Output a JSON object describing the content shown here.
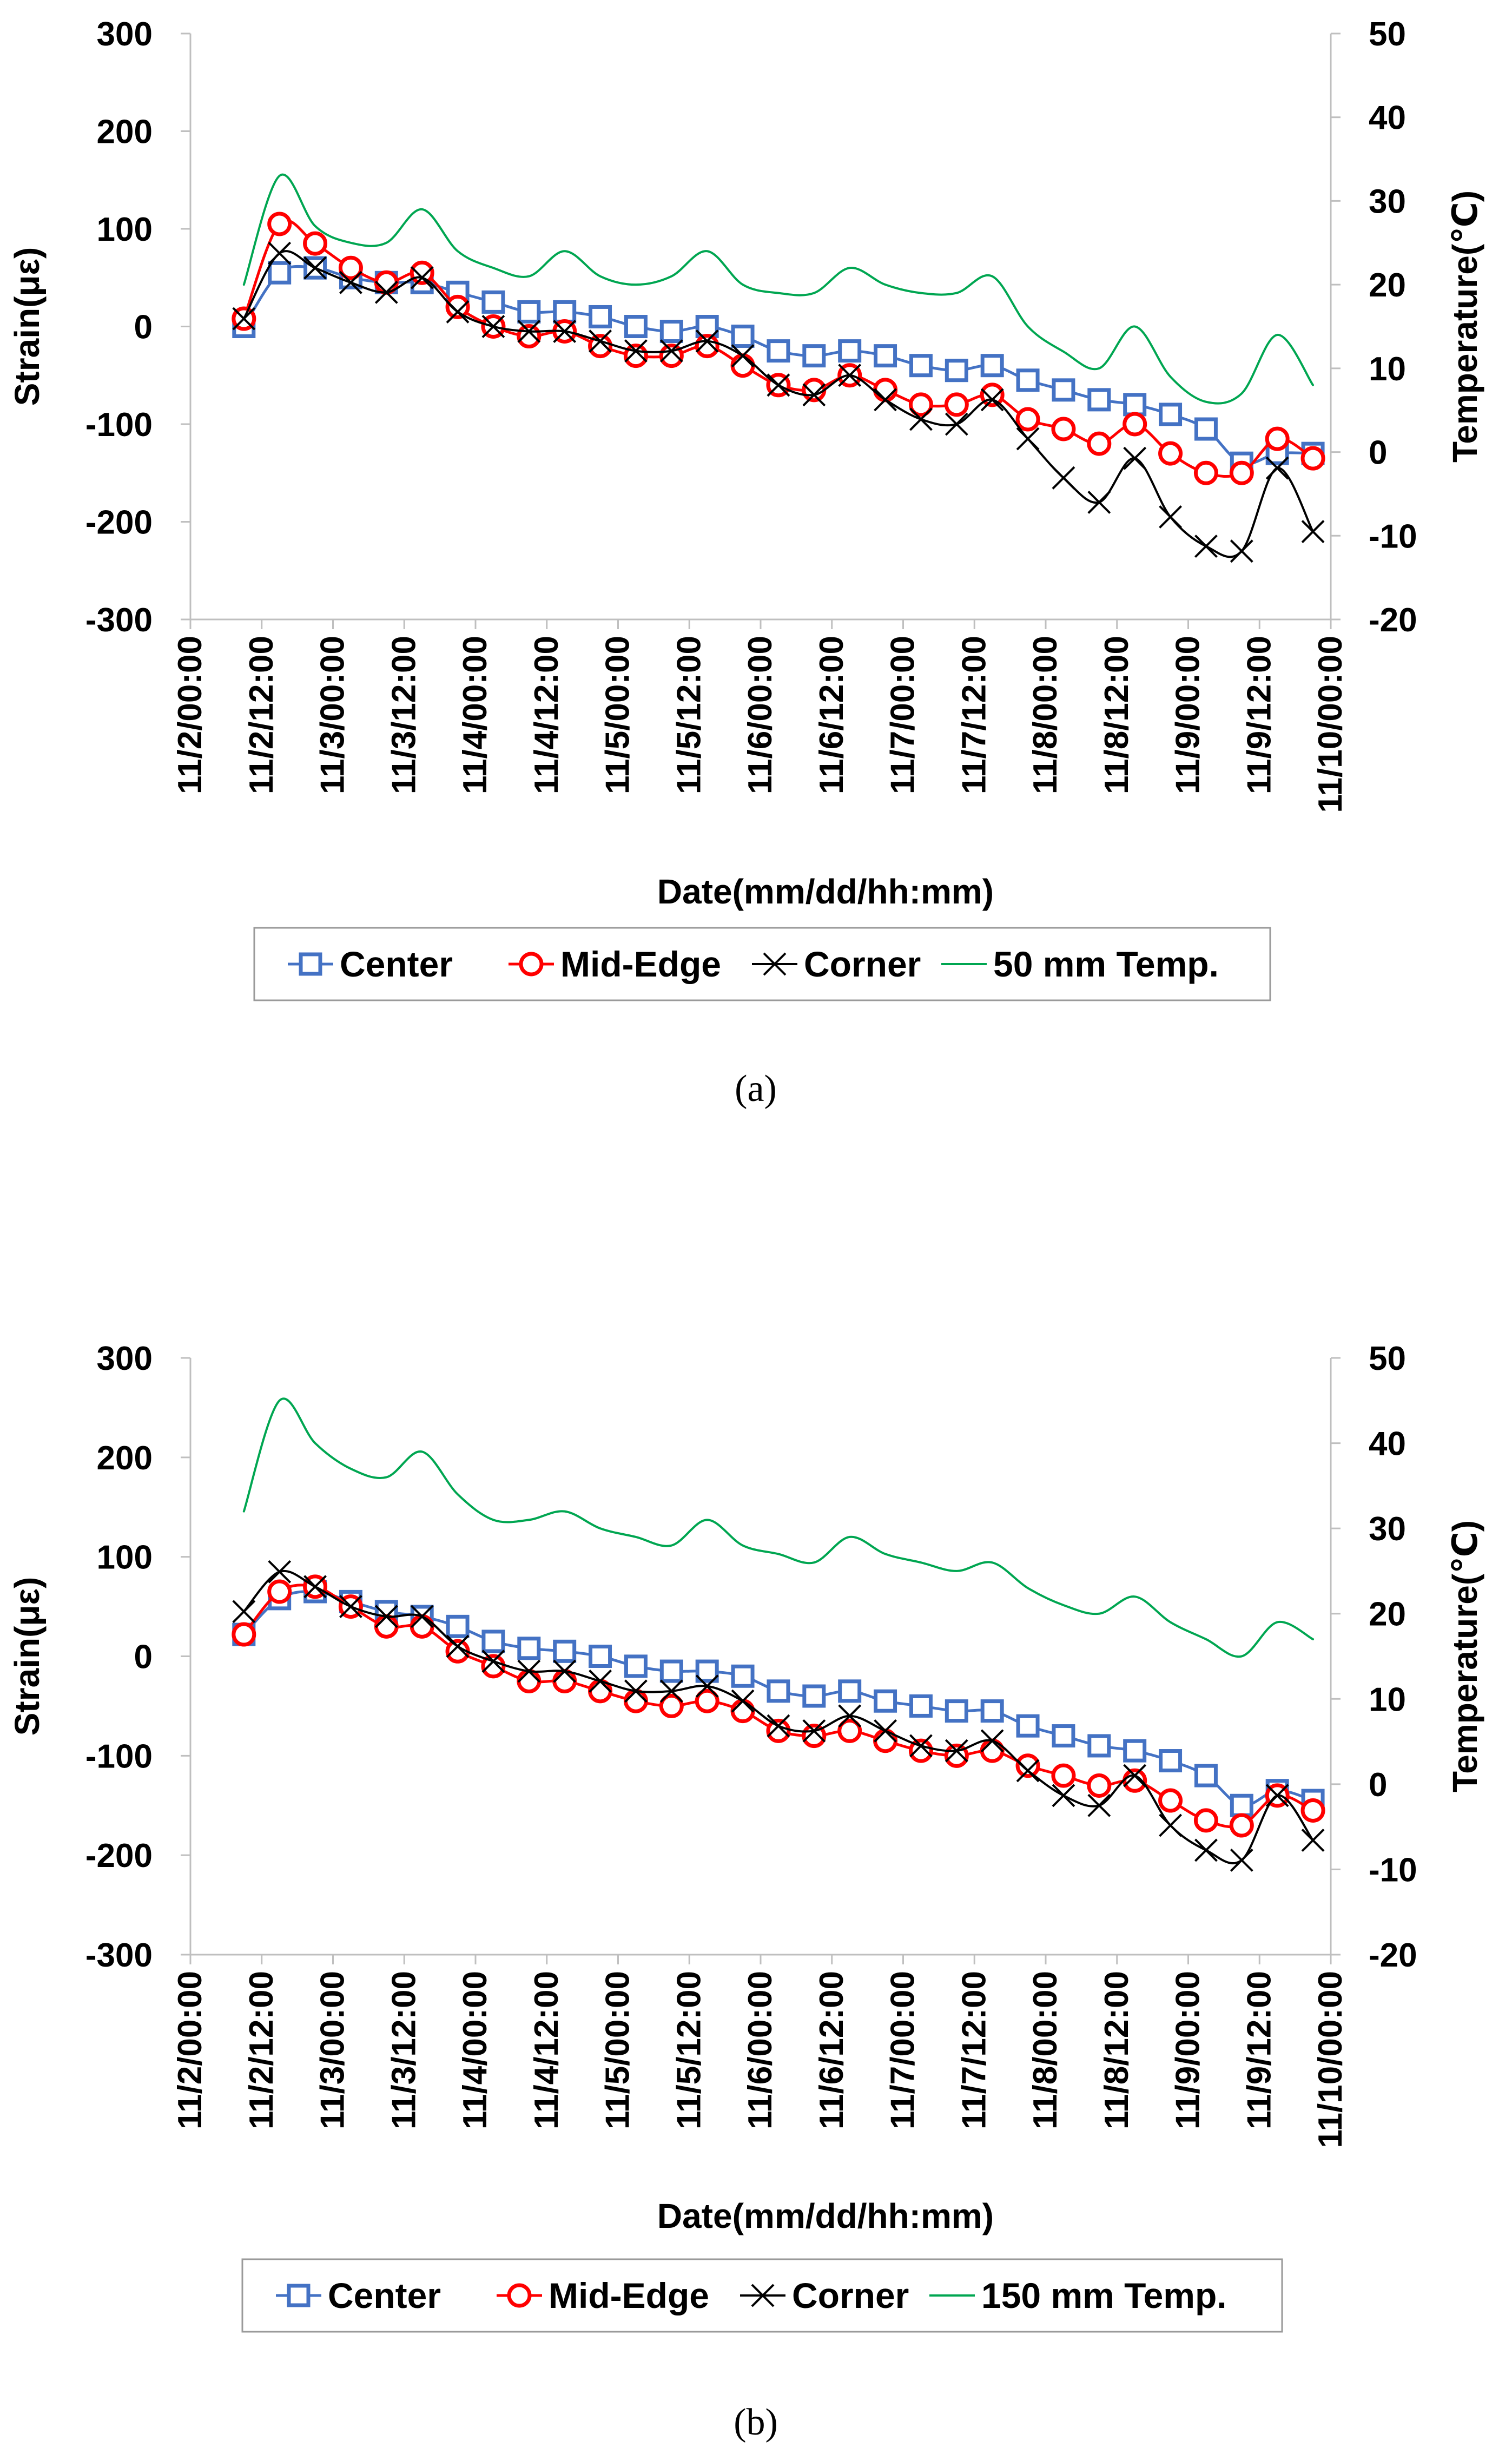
{
  "chart_data": [
    {
      "type": "line",
      "panel": "a",
      "caption": "(a)",
      "xlabel": "Date(mm/dd/hh:mm)",
      "ylabel": "Strain(με)",
      "y2label": "Temperature(℃)",
      "xlim": [
        0,
        192
      ],
      "ylim": [
        -300,
        300
      ],
      "y2lim": [
        -20,
        50
      ],
      "xticks": [
        0,
        12,
        24,
        36,
        48,
        60,
        72,
        84,
        96,
        108,
        120,
        132,
        144,
        156,
        168,
        180,
        192
      ],
      "xtick_labels": [
        "11/2/00:00",
        "11/2/12:00",
        "11/3/00:00",
        "11/3/12:00",
        "11/4/00:00",
        "11/4/12:00",
        "11/5/00:00",
        "11/5/12:00",
        "11/6/00:00",
        "11/6/12:00",
        "11/7/00:00",
        "11/7/12:00",
        "11/8/00:00",
        "11/8/12:00",
        "11/9/00:00",
        "11/9/12:00",
        "11/10/00:00"
      ],
      "yticks": [
        300,
        200,
        100,
        0,
        -100,
        -200,
        -300
      ],
      "y2ticks": [
        50,
        40,
        30,
        20,
        10,
        0,
        -10,
        -20
      ],
      "series": [
        {
          "name": "Center",
          "color": "#4472C4",
          "marker": "square",
          "x": [
            9,
            15,
            21,
            27,
            33,
            39,
            45,
            51,
            57,
            63,
            69,
            75,
            81,
            87,
            93,
            99,
            105,
            111,
            117,
            123,
            129,
            135,
            141,
            147,
            153,
            159,
            165,
            171,
            177,
            183,
            189
          ],
          "values": [
            0,
            55,
            60,
            50,
            45,
            45,
            35,
            25,
            15,
            15,
            10,
            0,
            -5,
            0,
            -10,
            -25,
            -30,
            -25,
            -30,
            -40,
            -45,
            -40,
            -55,
            -65,
            -75,
            -80,
            -90,
            -105,
            -140,
            -130,
            -130
          ]
        },
        {
          "name": "Mid-Edge",
          "color": "#FF0000",
          "marker": "circle",
          "x": [
            9,
            15,
            21,
            27,
            33,
            39,
            45,
            51,
            57,
            63,
            69,
            75,
            81,
            87,
            93,
            99,
            105,
            111,
            117,
            123,
            129,
            135,
            141,
            147,
            153,
            159,
            165,
            171,
            177,
            183,
            189
          ],
          "values": [
            8,
            105,
            85,
            60,
            45,
            55,
            20,
            0,
            -10,
            -5,
            -20,
            -30,
            -30,
            -20,
            -40,
            -60,
            -65,
            -50,
            -65,
            -80,
            -80,
            -70,
            -95,
            -105,
            -120,
            -100,
            -130,
            -150,
            -150,
            -115,
            -135
          ]
        },
        {
          "name": "Corner",
          "color": "#000000",
          "marker": "x",
          "x": [
            9,
            15,
            21,
            27,
            33,
            39,
            45,
            51,
            57,
            63,
            69,
            75,
            81,
            87,
            93,
            99,
            105,
            111,
            117,
            123,
            129,
            135,
            141,
            147,
            153,
            159,
            165,
            171,
            177,
            183,
            189
          ],
          "values": [
            8,
            75,
            60,
            45,
            35,
            50,
            15,
            0,
            -5,
            -5,
            -15,
            -25,
            -25,
            -15,
            -30,
            -60,
            -70,
            -50,
            -75,
            -95,
            -100,
            -75,
            -115,
            -155,
            -180,
            -135,
            -195,
            -225,
            -230,
            -145,
            -210
          ]
        },
        {
          "name": "50 mm Temp.",
          "color": "#00A651",
          "marker": "none",
          "axis": "y2",
          "x": [
            9,
            15,
            21,
            27,
            33,
            39,
            45,
            51,
            57,
            63,
            69,
            75,
            81,
            87,
            93,
            99,
            105,
            111,
            117,
            123,
            129,
            135,
            141,
            147,
            153,
            159,
            165,
            171,
            177,
            183,
            189
          ],
          "values": [
            20,
            33,
            27,
            25,
            25,
            29,
            24,
            22,
            21,
            24,
            21,
            20,
            21,
            24,
            20,
            19,
            19,
            22,
            20,
            19,
            19,
            21,
            15,
            12,
            10,
            15,
            9,
            6,
            7,
            14,
            8
          ]
        }
      ],
      "legend": [
        "Center",
        "Mid-Edge",
        "Corner",
        "50 mm Temp."
      ]
    },
    {
      "type": "line",
      "panel": "b",
      "caption": "(b)",
      "xlabel": "Date(mm/dd/hh:mm)",
      "ylabel": "Strain(με)",
      "y2label": "Temperature(℃)",
      "xlim": [
        0,
        192
      ],
      "ylim": [
        -300,
        300
      ],
      "y2lim": [
        -20,
        50
      ],
      "xticks": [
        0,
        12,
        24,
        36,
        48,
        60,
        72,
        84,
        96,
        108,
        120,
        132,
        144,
        156,
        168,
        180,
        192
      ],
      "xtick_labels": [
        "11/2/00:00",
        "11/2/12:00",
        "11/3/00:00",
        "11/3/12:00",
        "11/4/00:00",
        "11/4/12:00",
        "11/5/00:00",
        "11/5/12:00",
        "11/6/00:00",
        "11/6/12:00",
        "11/7/00:00",
        "11/7/12:00",
        "11/8/00:00",
        "11/8/12:00",
        "11/9/00:00",
        "11/9/12:00",
        "11/10/00:00"
      ],
      "yticks": [
        300,
        200,
        100,
        0,
        -100,
        -200,
        -300
      ],
      "y2ticks": [
        50,
        40,
        30,
        20,
        10,
        0,
        -10,
        -20
      ],
      "series": [
        {
          "name": "Center",
          "color": "#4472C4",
          "marker": "square",
          "x": [
            9,
            15,
            21,
            27,
            33,
            39,
            45,
            51,
            57,
            63,
            69,
            75,
            81,
            87,
            93,
            99,
            105,
            111,
            117,
            123,
            129,
            135,
            141,
            147,
            153,
            159,
            165,
            171,
            177,
            183,
            189
          ],
          "values": [
            22,
            58,
            65,
            55,
            45,
            40,
            30,
            15,
            8,
            5,
            0,
            -10,
            -15,
            -15,
            -20,
            -35,
            -40,
            -35,
            -45,
            -50,
            -55,
            -55,
            -70,
            -80,
            -90,
            -95,
            -105,
            -120,
            -150,
            -135,
            -145
          ]
        },
        {
          "name": "Mid-Edge",
          "color": "#FF0000",
          "marker": "circle",
          "x": [
            9,
            15,
            21,
            27,
            33,
            39,
            45,
            51,
            57,
            63,
            69,
            75,
            81,
            87,
            93,
            99,
            105,
            111,
            117,
            123,
            129,
            135,
            141,
            147,
            153,
            159,
            165,
            171,
            177,
            183,
            189
          ],
          "values": [
            22,
            65,
            70,
            50,
            30,
            30,
            5,
            -10,
            -25,
            -25,
            -35,
            -45,
            -50,
            -45,
            -55,
            -75,
            -80,
            -75,
            -85,
            -95,
            -100,
            -95,
            -110,
            -120,
            -130,
            -125,
            -145,
            -165,
            -170,
            -140,
            -155
          ]
        },
        {
          "name": "Corner",
          "color": "#000000",
          "marker": "x",
          "x": [
            9,
            15,
            21,
            27,
            33,
            39,
            45,
            51,
            57,
            63,
            69,
            75,
            81,
            87,
            93,
            99,
            105,
            111,
            117,
            123,
            129,
            135,
            141,
            147,
            153,
            159,
            165,
            171,
            177,
            183,
            189
          ],
          "values": [
            45,
            85,
            70,
            50,
            40,
            40,
            10,
            -5,
            -15,
            -15,
            -25,
            -35,
            -35,
            -30,
            -45,
            -70,
            -75,
            -60,
            -75,
            -90,
            -95,
            -85,
            -115,
            -140,
            -150,
            -120,
            -170,
            -195,
            -205,
            -140,
            -185
          ]
        },
        {
          "name": "150 mm Temp.",
          "color": "#00A651",
          "marker": "none",
          "axis": "y2",
          "x": [
            9,
            15,
            21,
            27,
            33,
            39,
            45,
            51,
            57,
            63,
            69,
            75,
            81,
            87,
            93,
            99,
            105,
            111,
            117,
            123,
            129,
            135,
            141,
            147,
            153,
            159,
            165,
            171,
            177,
            183,
            189
          ],
          "values": [
            32,
            45,
            40,
            37,
            36,
            39,
            34,
            31,
            31,
            32,
            30,
            29,
            28,
            31,
            28,
            27,
            26,
            29,
            27,
            26,
            25,
            26,
            23,
            21,
            20,
            22,
            19,
            17,
            15,
            19,
            17
          ]
        }
      ],
      "legend": [
        "Center",
        "Mid-Edge",
        "Corner",
        "150 mm Temp."
      ]
    }
  ]
}
